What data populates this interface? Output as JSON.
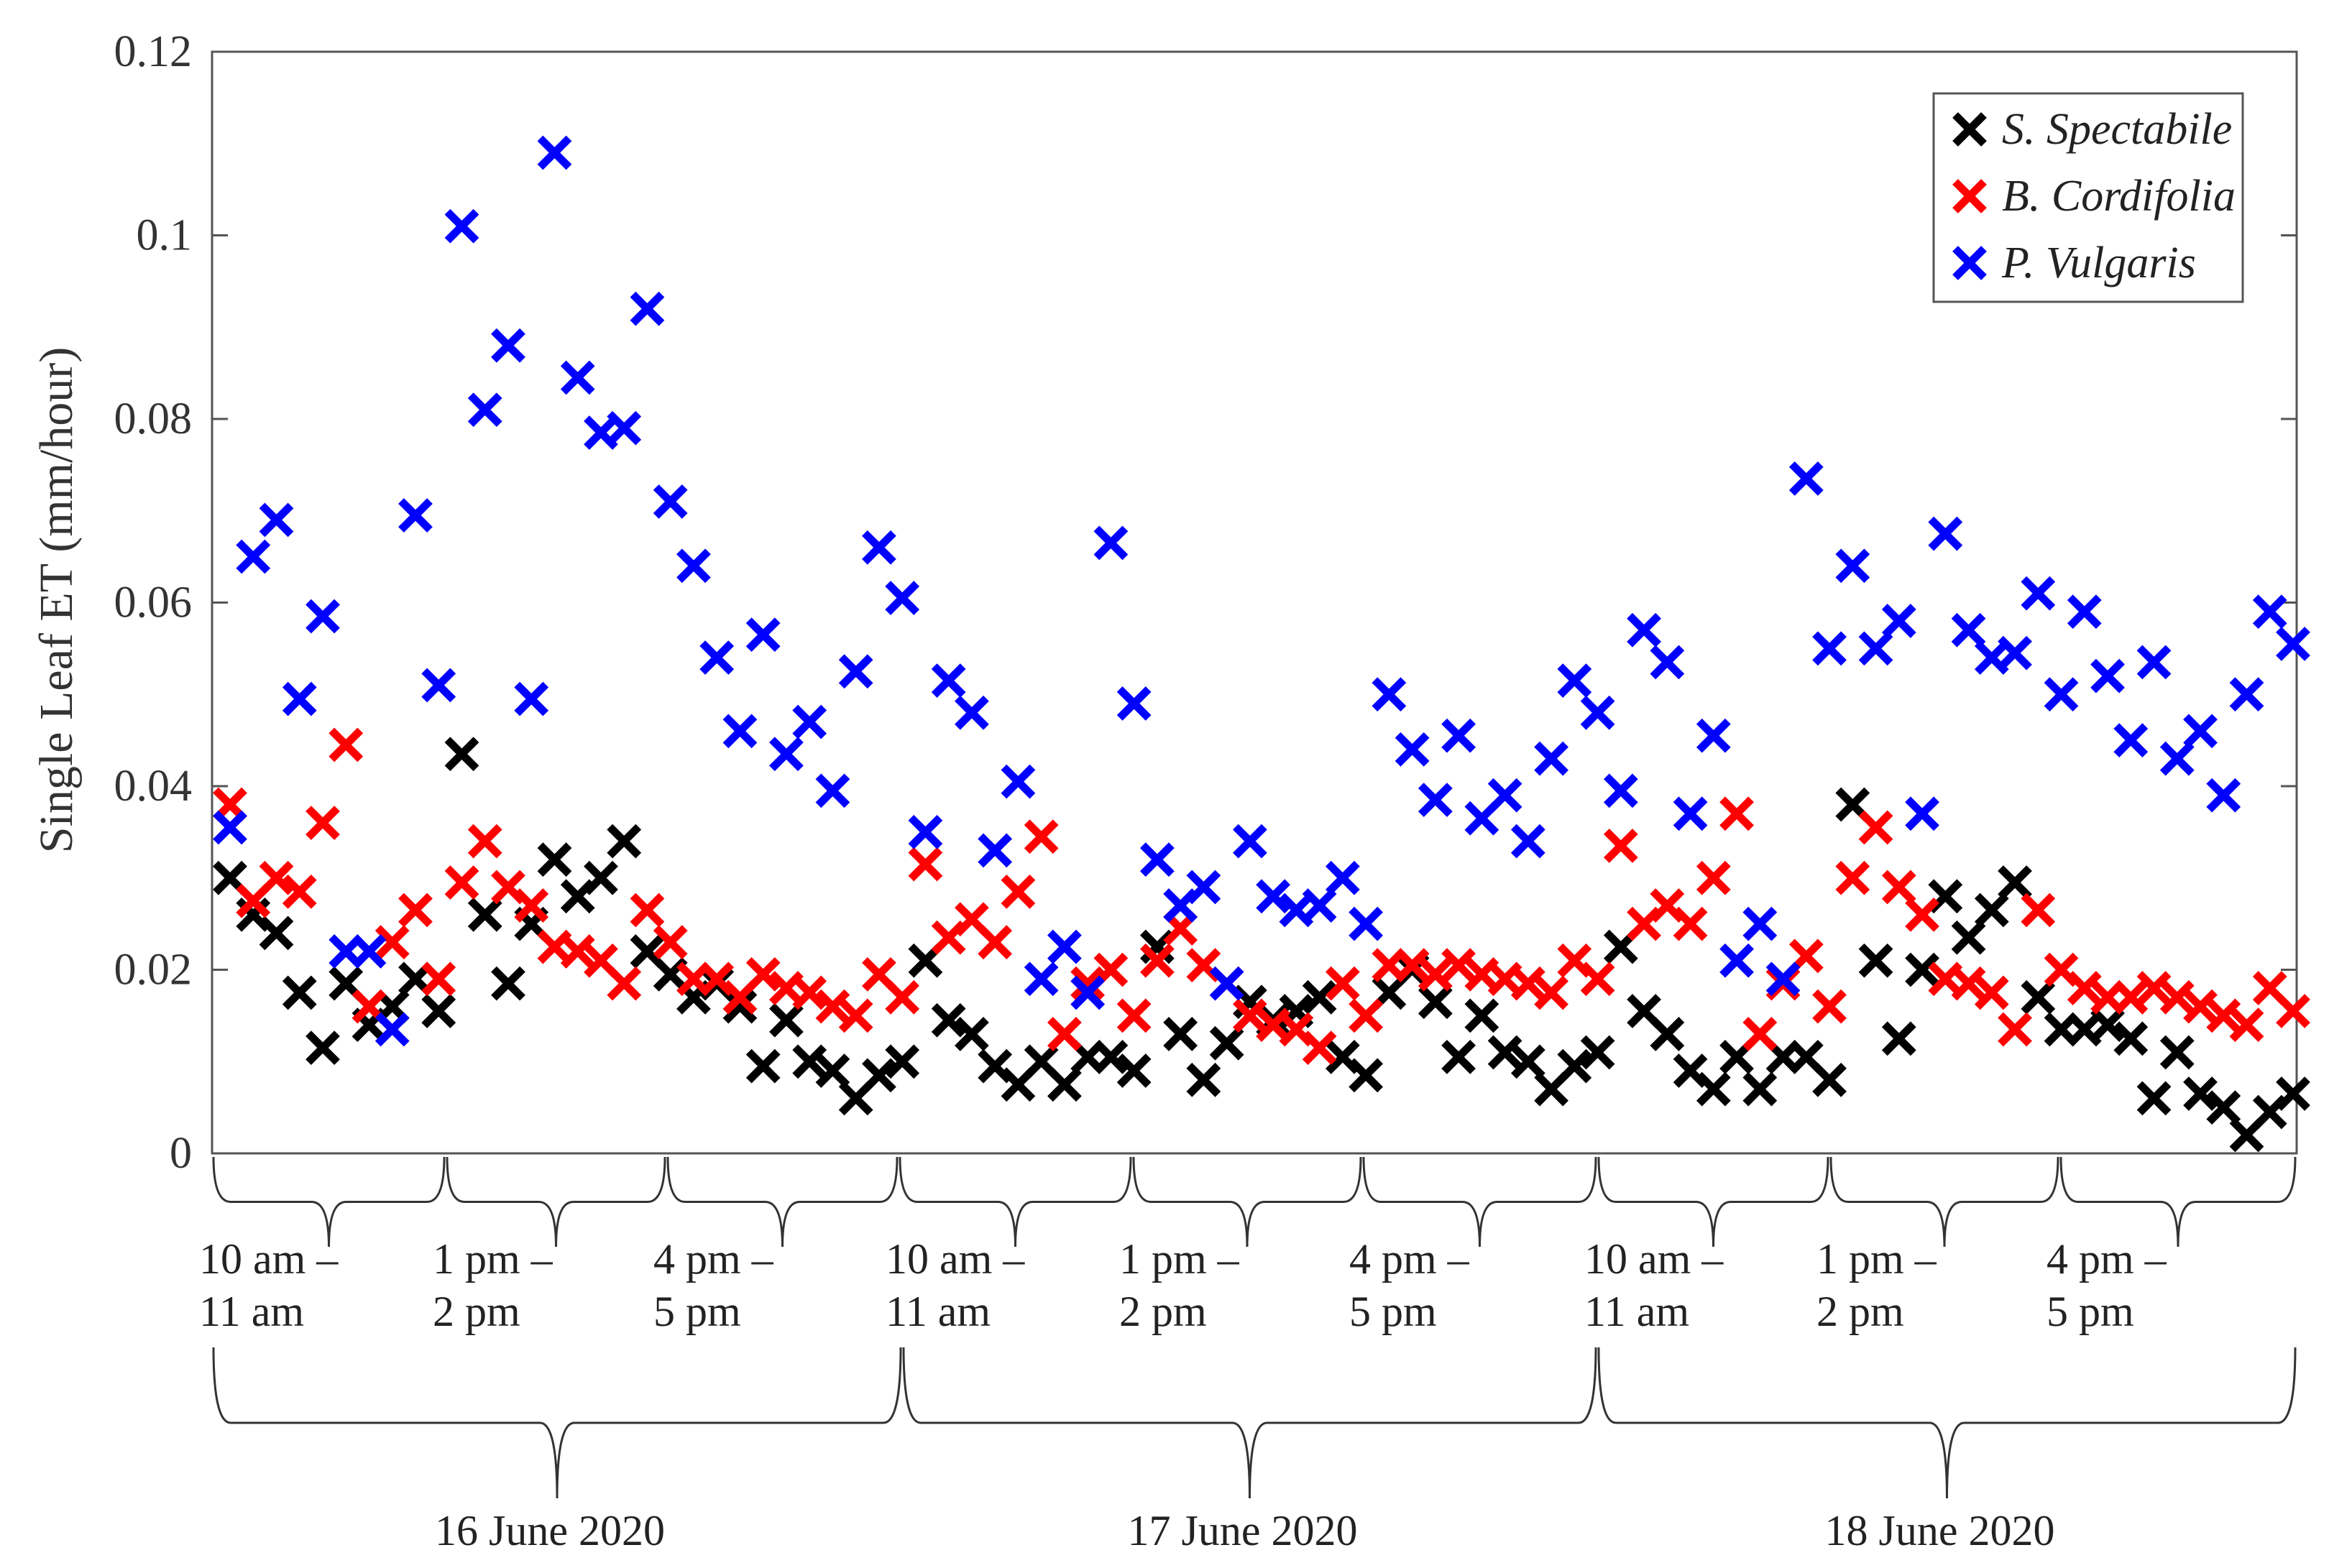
{
  "chart_data": {
    "type": "scatter",
    "title": "",
    "ylabel": "Single Leaf ET (mm/hour)",
    "xlabel": "",
    "ylim": [
      0,
      0.12
    ],
    "yticks": [
      0,
      0.02,
      0.04,
      0.06,
      0.08,
      0.1,
      0.12
    ],
    "ytick_labels": [
      "0",
      "0.02",
      "0.04",
      "0.06",
      "0.08",
      "0.1",
      "0.12"
    ],
    "n_points": 90,
    "legend": {
      "position": "top-right"
    },
    "time_groups": [
      {
        "line1": "10 am –",
        "line2": "11 am"
      },
      {
        "line1": "1 pm –",
        "line2": "2 pm"
      },
      {
        "line1": "4 pm –",
        "line2": "5 pm"
      },
      {
        "line1": "10 am –",
        "line2": "11 am"
      },
      {
        "line1": "1 pm –",
        "line2": "2 pm"
      },
      {
        "line1": "4 pm –",
        "line2": "5 pm"
      },
      {
        "line1": "10 am –",
        "line2": "11 am"
      },
      {
        "line1": "1 pm –",
        "line2": "2 pm"
      },
      {
        "line1": "4 pm –",
        "line2": "5 pm"
      }
    ],
    "day_groups": [
      "16 June 2020",
      "17 June 2020",
      "18 June 2020"
    ],
    "series": [
      {
        "name": "S. Spectabile",
        "color": "#000000",
        "values": [
          0.03,
          0.026,
          0.024,
          0.0175,
          0.0115,
          0.0185,
          0.014,
          0.016,
          0.019,
          0.0155,
          0.0435,
          0.026,
          0.0185,
          0.025,
          0.032,
          0.028,
          0.03,
          0.034,
          0.022,
          0.0195,
          0.017,
          0.0185,
          0.016,
          0.0095,
          0.0145,
          0.01,
          0.009,
          0.006,
          0.0085,
          0.01,
          0.021,
          0.0145,
          0.013,
          0.0095,
          0.0075,
          0.01,
          0.0075,
          0.0105,
          0.0105,
          0.009,
          0.0225,
          0.013,
          0.008,
          0.012,
          0.0165,
          0.0145,
          0.0155,
          0.017,
          0.0105,
          0.0085,
          0.0175,
          0.02,
          0.0165,
          0.0105,
          0.015,
          0.011,
          0.01,
          0.007,
          0.0095,
          0.011,
          0.0225,
          0.0155,
          0.013,
          0.009,
          0.007,
          0.0105,
          0.007,
          0.0105,
          0.0105,
          0.008,
          0.038,
          0.021,
          0.0125,
          0.02,
          0.028,
          0.0235,
          0.0265,
          0.0295,
          0.017,
          0.0135,
          0.0135,
          0.014,
          0.0125,
          0.006,
          0.011,
          0.0065,
          0.005,
          0.002,
          0.0045,
          0.0065
        ]
      },
      {
        "name": "B. Cordifolia",
        "color": "#ff0000",
        "values": [
          0.038,
          0.0275,
          0.03,
          0.0285,
          0.036,
          0.0445,
          0.016,
          0.023,
          0.0265,
          0.019,
          0.0295,
          0.034,
          0.029,
          0.027,
          0.0225,
          0.022,
          0.021,
          0.0185,
          0.0265,
          0.023,
          0.019,
          0.019,
          0.017,
          0.0195,
          0.018,
          0.0175,
          0.016,
          0.015,
          0.0195,
          0.017,
          0.0315,
          0.0235,
          0.0255,
          0.023,
          0.0285,
          0.0345,
          0.013,
          0.0185,
          0.02,
          0.015,
          0.021,
          0.0245,
          0.0205,
          0.0185,
          0.015,
          0.014,
          0.0135,
          0.0115,
          0.0185,
          0.015,
          0.0205,
          0.0205,
          0.0195,
          0.0205,
          0.0195,
          0.019,
          0.0185,
          0.0175,
          0.021,
          0.019,
          0.0335,
          0.025,
          0.027,
          0.025,
          0.03,
          0.037,
          0.013,
          0.0185,
          0.0215,
          0.016,
          0.03,
          0.0355,
          0.029,
          0.026,
          0.019,
          0.0185,
          0.0175,
          0.0135,
          0.0265,
          0.02,
          0.018,
          0.017,
          0.017,
          0.018,
          0.017,
          0.016,
          0.015,
          0.014,
          0.018,
          0.0155
        ]
      },
      {
        "name": "P. Vulgaris",
        "color": "#0000ff",
        "values": [
          0.0355,
          0.065,
          0.069,
          0.0495,
          0.0585,
          0.022,
          0.022,
          0.0135,
          0.0695,
          0.051,
          0.101,
          0.081,
          0.088,
          0.0495,
          0.109,
          0.0845,
          0.0785,
          0.079,
          0.092,
          0.071,
          0.064,
          0.054,
          0.046,
          0.0565,
          0.0435,
          0.047,
          0.0395,
          0.0525,
          0.066,
          0.0605,
          0.035,
          0.0515,
          0.048,
          0.033,
          0.0405,
          0.019,
          0.0225,
          0.0175,
          0.0665,
          0.049,
          0.032,
          0.027,
          0.029,
          0.0185,
          0.034,
          0.028,
          0.0265,
          0.027,
          0.03,
          0.025,
          0.05,
          0.044,
          0.0385,
          0.0455,
          0.0365,
          0.039,
          0.034,
          0.043,
          0.0515,
          0.048,
          0.0395,
          0.057,
          0.0535,
          0.037,
          0.0455,
          0.021,
          0.025,
          0.019,
          0.0735,
          0.055,
          0.064,
          0.055,
          0.058,
          0.037,
          0.0675,
          0.057,
          0.054,
          0.0545,
          0.061,
          0.05,
          0.059,
          0.052,
          0.045,
          0.0535,
          0.043,
          0.046,
          0.039,
          0.05,
          0.059,
          0.0555
        ]
      }
    ]
  }
}
